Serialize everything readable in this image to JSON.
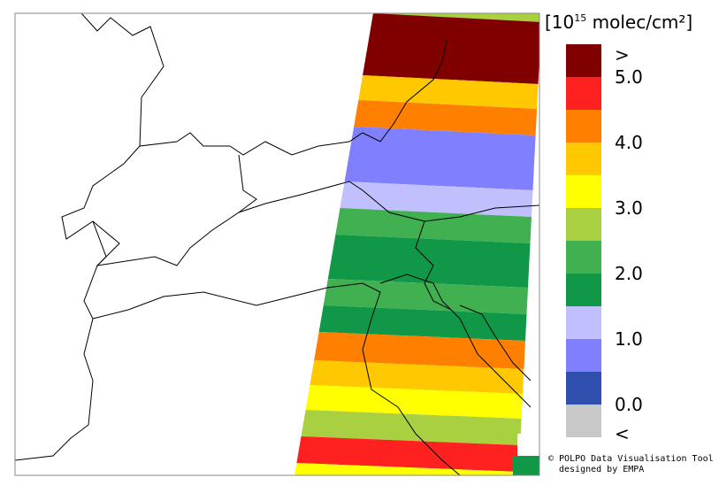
{
  "legend": {
    "unit_prefix": "[10",
    "unit_exponent": "15",
    "unit_suffix": " molec/cm²]",
    "labels": [
      ">",
      "5.0",
      "4.0",
      "3.0",
      "2.0",
      "1.0",
      "0.0",
      "<"
    ],
    "colors": [
      "#800000",
      "#ff2020",
      "#ff8000",
      "#ffc800",
      "#ffff00",
      "#a8d040",
      "#40b050",
      "#109848",
      "#c0c0ff",
      "#8080ff",
      "#3050b0",
      "#c8c8c8"
    ]
  },
  "credit": {
    "line1": "© POLPO Data Visualisation Tool",
    "line2": "designed by EMPA"
  }
}
